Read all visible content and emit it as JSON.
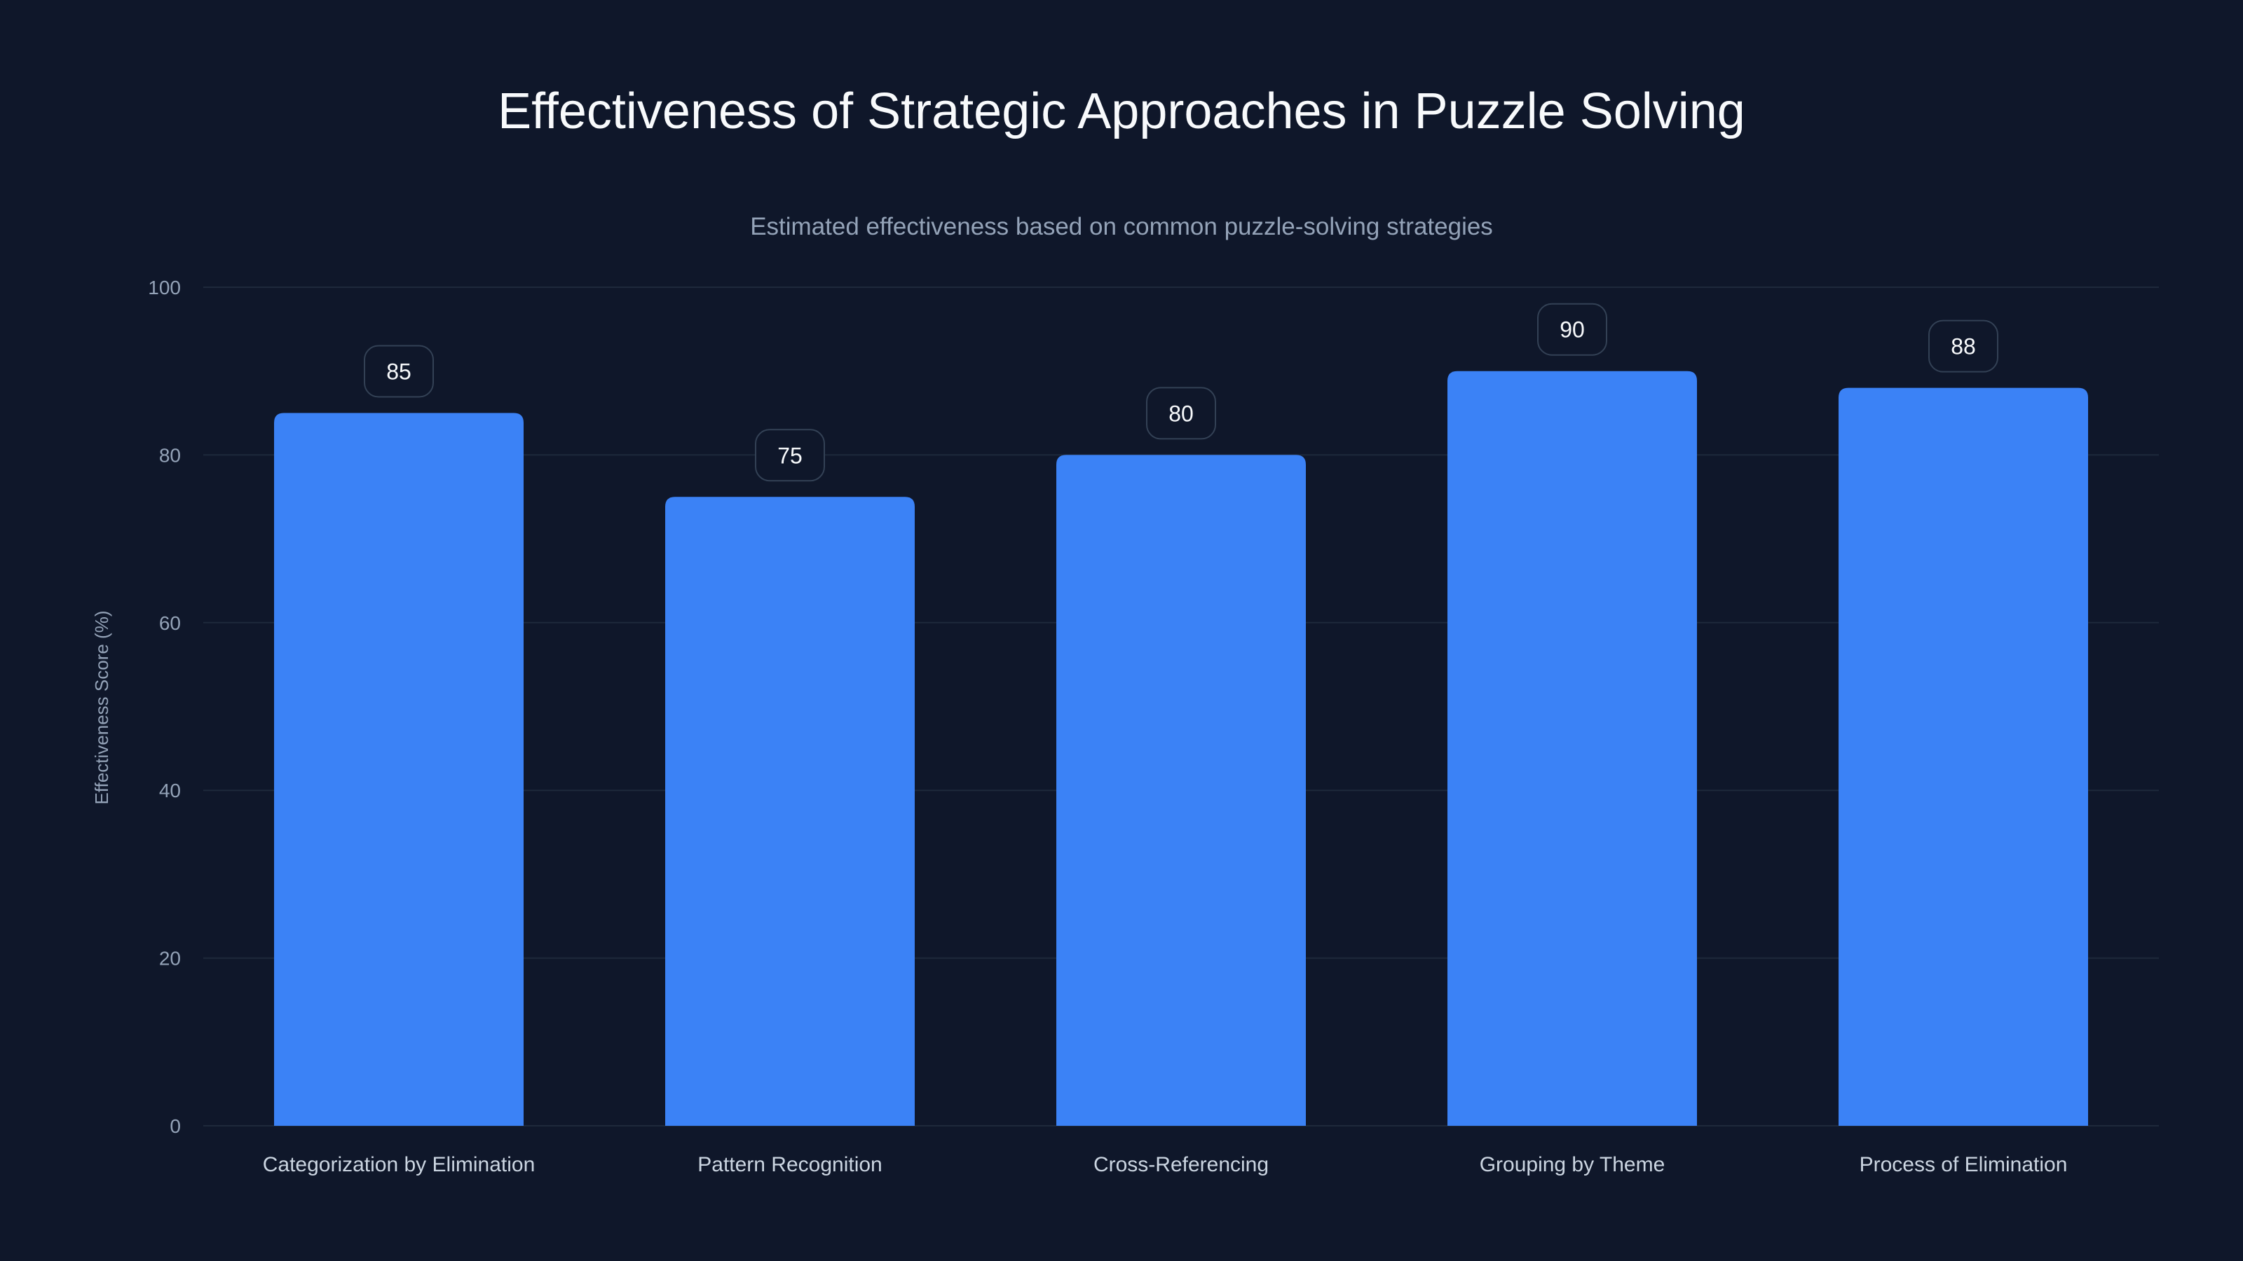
{
  "chart_data": {
    "type": "bar",
    "title": "Effectiveness of Strategic Approaches in Puzzle Solving",
    "subtitle": "Estimated effectiveness based on common puzzle-solving strategies",
    "xlabel": "",
    "ylabel": "Effectiveness Score (%)",
    "categories": [
      "Categorization by Elimination",
      "Pattern Recognition",
      "Cross-Referencing",
      "Grouping by Theme",
      "Process of Elimination"
    ],
    "values": [
      85,
      75,
      80,
      90,
      88
    ],
    "data_labels": [
      "85",
      "75",
      "80",
      "90",
      "88"
    ],
    "ylim": [
      0,
      100
    ],
    "yticks": [
      "0",
      "20",
      "40",
      "60",
      "80",
      "100"
    ],
    "grid": true,
    "legend": "none",
    "colors": {
      "background": "#0f172a",
      "bar": "#3b82f6",
      "grid": "#1e293b",
      "tick_text": "#94a3b8",
      "title": "#f8fafc"
    }
  }
}
